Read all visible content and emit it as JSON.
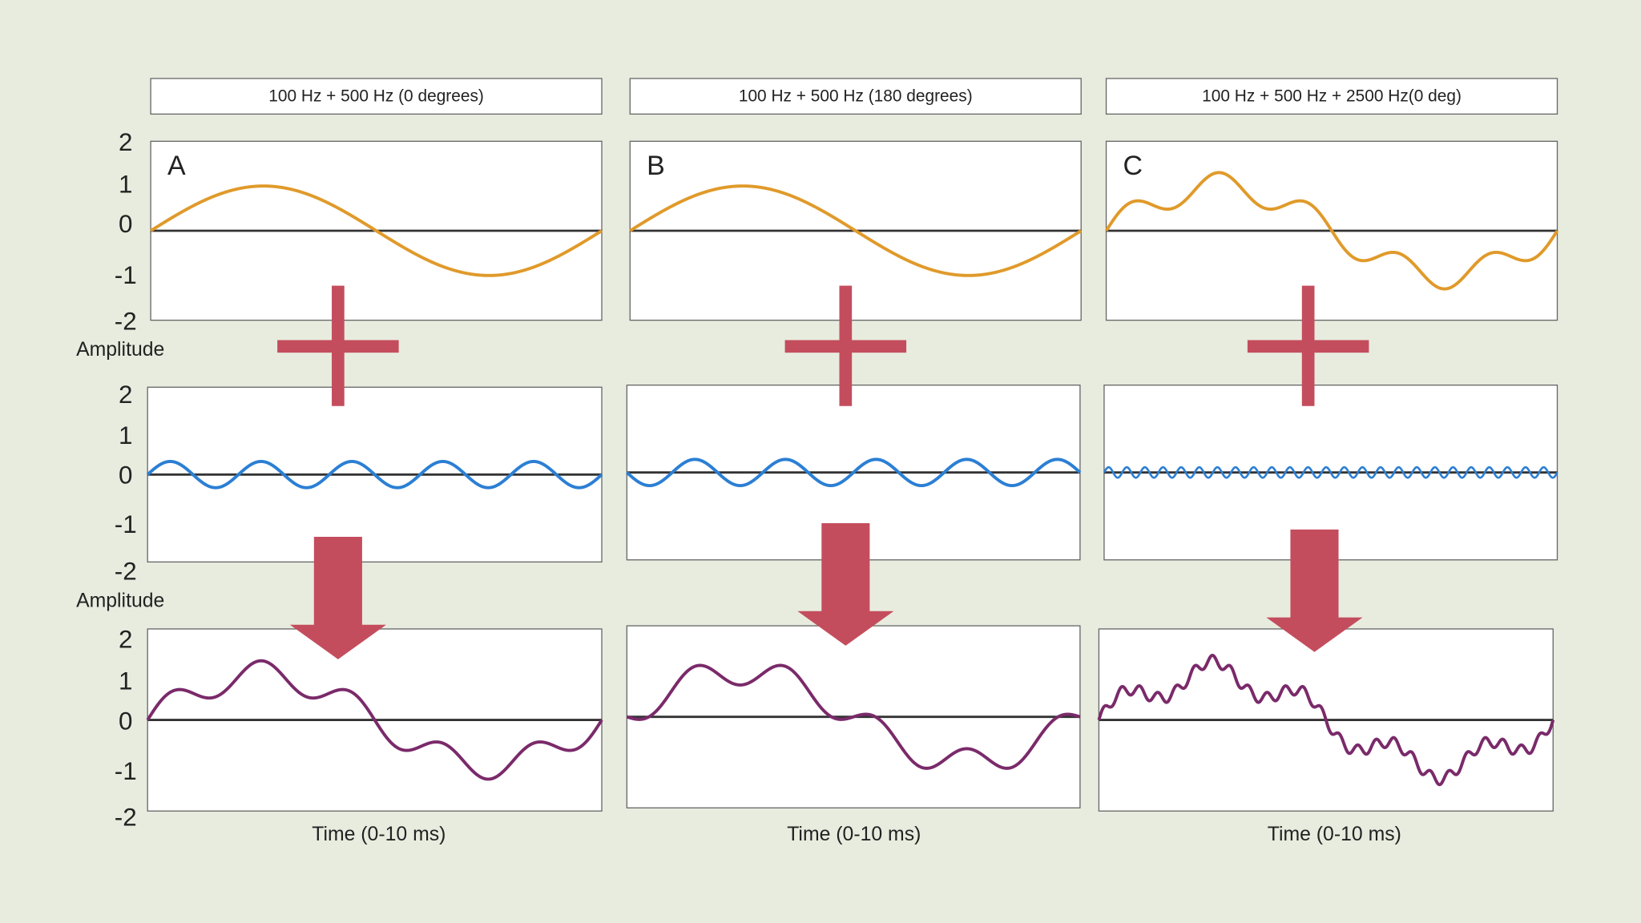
{
  "background": "#e8ecdf",
  "accent": "#c44d5d",
  "axis_label_y": "Amplitude",
  "yticks": [
    "2",
    "1",
    "0",
    "-1",
    "-2"
  ],
  "symbols": {
    "plus": "plus-icon",
    "arrow": "arrow-down-icon"
  },
  "chart_data": [
    {
      "type": "line",
      "title": "100 Hz + 500 Hz (0 degrees)",
      "panel": "A",
      "xlabel": "Time (0-10 ms)",
      "ylabel": "Amplitude",
      "xlim": [
        0,
        10
      ],
      "ylim": [
        -2,
        2
      ],
      "grid": false,
      "rows": [
        {
          "color": "#e09a2a",
          "components": [
            {
              "freq_hz": 100,
              "amplitude": 1,
              "phase_deg": 0
            }
          ]
        },
        {
          "color": "#2b7fd4",
          "components": [
            {
              "freq_hz": 500,
              "amplitude": 0.3,
              "phase_deg": 0
            }
          ]
        },
        {
          "color": "#7a2a6a",
          "components": [
            {
              "freq_hz": 100,
              "amplitude": 1,
              "phase_deg": 0
            },
            {
              "freq_hz": 500,
              "amplitude": 0.3,
              "phase_deg": 0
            }
          ]
        }
      ]
    },
    {
      "type": "line",
      "title": "100 Hz + 500 Hz (180 degrees)",
      "panel": "B",
      "xlabel": "Time (0-10 ms)",
      "ylabel": "Amplitude",
      "xlim": [
        0,
        10
      ],
      "ylim": [
        -2,
        2
      ],
      "grid": false,
      "rows": [
        {
          "color": "#e09a2a",
          "components": [
            {
              "freq_hz": 100,
              "amplitude": 1,
              "phase_deg": 0
            }
          ]
        },
        {
          "color": "#2b7fd4",
          "components": [
            {
              "freq_hz": 500,
              "amplitude": 0.3,
              "phase_deg": 180
            }
          ]
        },
        {
          "color": "#7a2a6a",
          "components": [
            {
              "freq_hz": 100,
              "amplitude": 1,
              "phase_deg": 0
            },
            {
              "freq_hz": 500,
              "amplitude": 0.3,
              "phase_deg": 180
            }
          ]
        }
      ]
    },
    {
      "type": "line",
      "title": "100 Hz + 500 Hz  + 2500 Hz(0 deg)",
      "panel": "C",
      "xlabel": "Time (0-10 ms)",
      "ylabel": "Amplitude",
      "xlim": [
        0,
        10
      ],
      "ylim": [
        -2,
        2
      ],
      "grid": false,
      "rows": [
        {
          "color": "#e09a2a",
          "components": [
            {
              "freq_hz": 100,
              "amplitude": 1,
              "phase_deg": 0
            },
            {
              "freq_hz": 500,
              "amplitude": 0.3,
              "phase_deg": 0
            }
          ]
        },
        {
          "color": "#2b7fd4",
          "components": [
            {
              "freq_hz": 2500,
              "amplitude": 0.12,
              "phase_deg": 0
            }
          ]
        },
        {
          "color": "#7a2a6a",
          "components": [
            {
              "freq_hz": 100,
              "amplitude": 1,
              "phase_deg": 0
            },
            {
              "freq_hz": 500,
              "amplitude": 0.3,
              "phase_deg": 0
            },
            {
              "freq_hz": 2500,
              "amplitude": 0.12,
              "phase_deg": 0
            }
          ]
        }
      ]
    }
  ]
}
